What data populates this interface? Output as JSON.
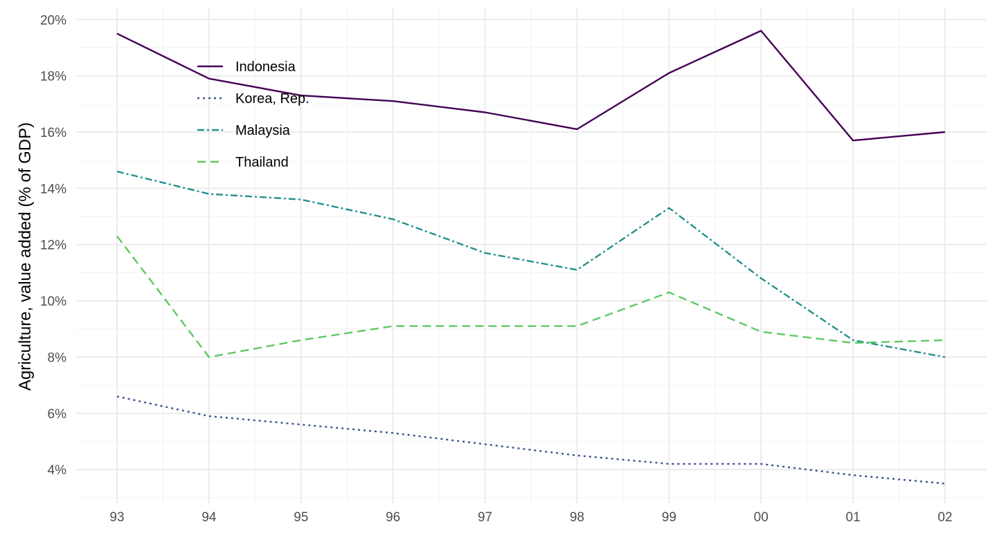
{
  "chart_data": {
    "type": "line",
    "x": [
      "93",
      "94",
      "95",
      "96",
      "97",
      "98",
      "99",
      "00",
      "01",
      "02"
    ],
    "ylabel": "Agriculture, value added (% of GDP)",
    "ylim": [
      2.8,
      20.4
    ],
    "yticks": [
      4,
      6,
      8,
      10,
      12,
      14,
      16,
      18,
      20
    ],
    "ytick_labels": [
      "4%",
      "6%",
      "8%",
      "10%",
      "12%",
      "14%",
      "16%",
      "18%",
      "20%"
    ],
    "grid": true,
    "legend_position": "top-left inside",
    "series": [
      {
        "name": "Indonesia",
        "color": "#440154",
        "dash": "solid",
        "values": [
          19.5,
          17.9,
          17.3,
          17.1,
          16.7,
          16.1,
          18.1,
          19.6,
          15.7,
          16.0
        ]
      },
      {
        "name": "Korea, Rep.",
        "color": "#3b528b",
        "dash": "dotted",
        "values": [
          6.6,
          5.9,
          5.6,
          5.3,
          4.9,
          4.5,
          4.2,
          4.2,
          3.8,
          3.5
        ]
      },
      {
        "name": "Malaysia",
        "color": "#21908c",
        "dash": "dashdot",
        "values": [
          14.6,
          13.8,
          13.6,
          12.9,
          11.7,
          11.1,
          13.3,
          10.8,
          8.6,
          8.0
        ]
      },
      {
        "name": "Thailand",
        "color": "#5dc863",
        "dash": "dashed",
        "values": [
          12.3,
          8.0,
          8.6,
          9.1,
          9.1,
          9.1,
          10.3,
          8.9,
          8.5,
          8.6
        ]
      }
    ]
  }
}
